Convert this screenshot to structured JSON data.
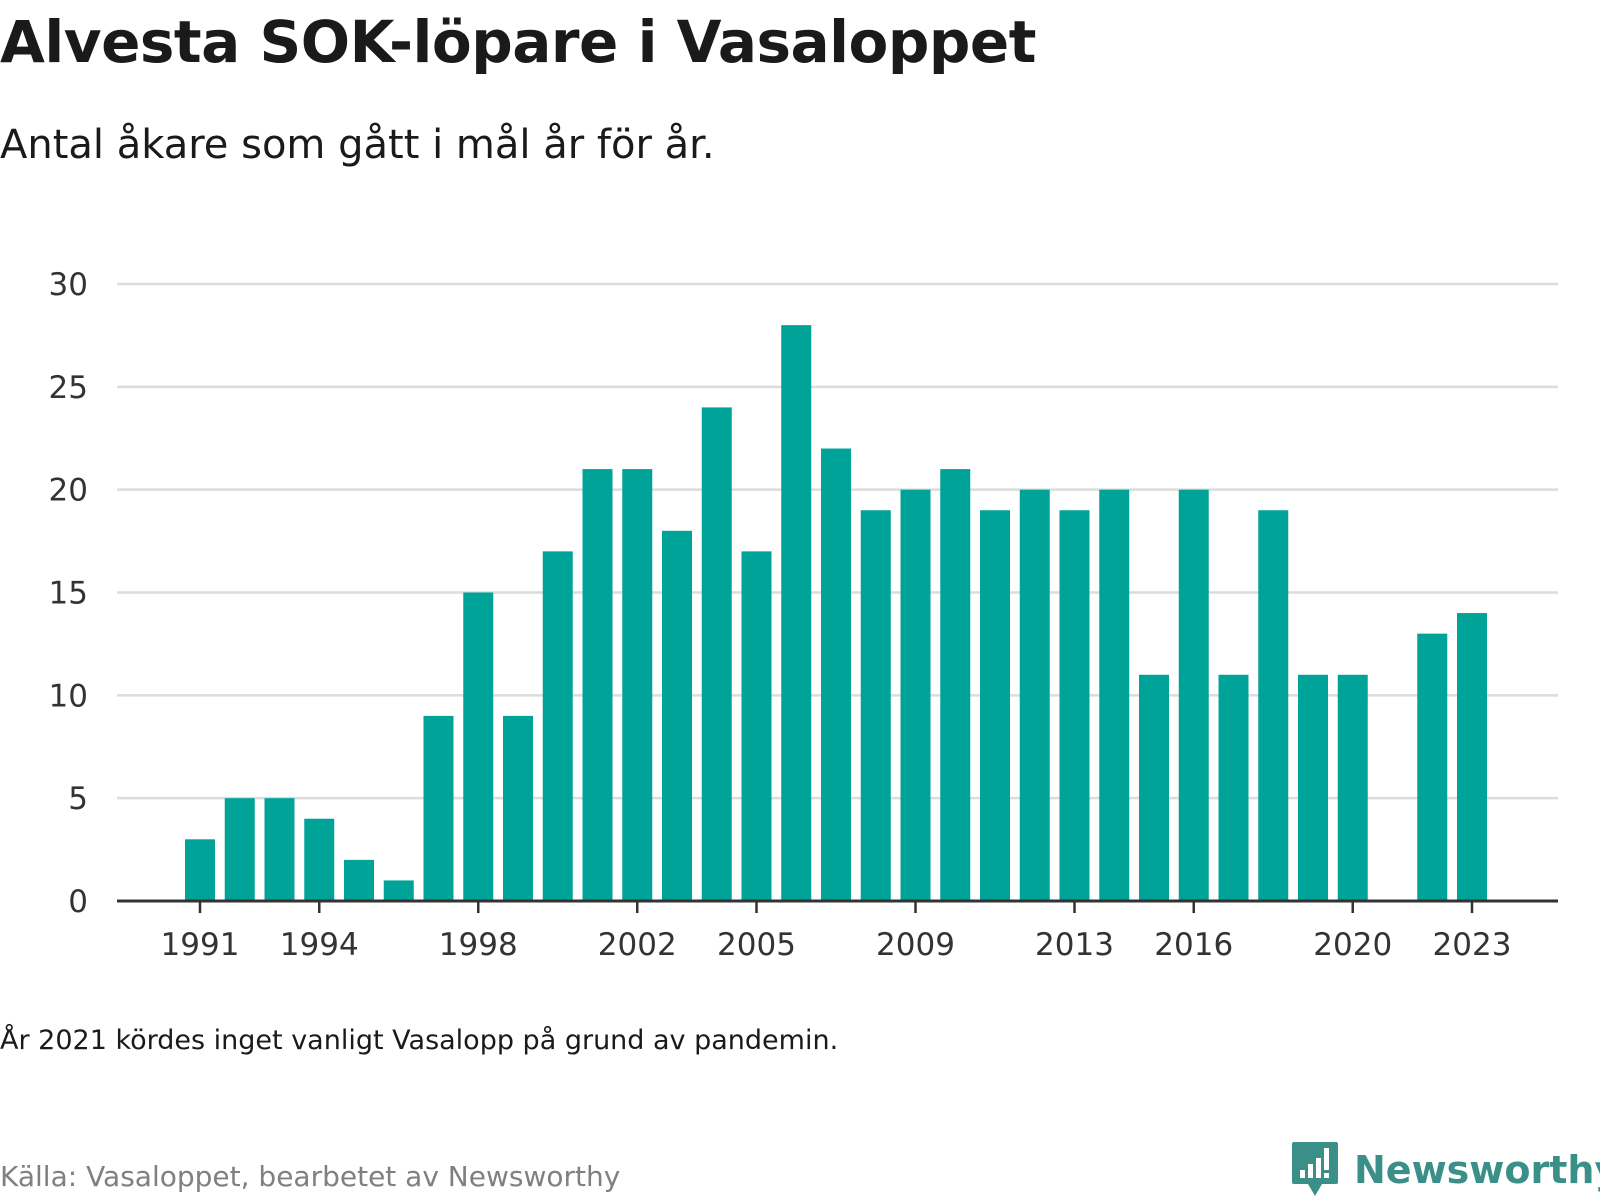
{
  "title": "Alvesta SOK-löpare i Vasaloppet",
  "subtitle": "Antal åkare som gått i mål år för år.",
  "note": "År 2021 kördes inget vanligt Vasalopp på grund av pandemin.",
  "source": "Källa: Vasaloppet, bearbetet av Newsworthy",
  "brand": {
    "name": "Newsworthy",
    "color": "#3a8f88",
    "icon": "newsworthy-logo-icon"
  },
  "chart_data": {
    "type": "bar",
    "title": "Alvesta SOK-löpare i Vasaloppet",
    "subtitle": "Antal åkare som gått i mål år för år.",
    "xlabel": "",
    "ylabel": "",
    "ylim": [
      0,
      30
    ],
    "yticks": [
      0,
      5,
      10,
      15,
      20,
      25,
      30
    ],
    "xticks": [
      1991,
      1994,
      1998,
      2002,
      2005,
      2009,
      2013,
      2016,
      2020,
      2023
    ],
    "grid": true,
    "bar_color": "#00a398",
    "categories": [
      1991,
      1992,
      1993,
      1994,
      1995,
      1996,
      1997,
      1998,
      1999,
      2000,
      2001,
      2002,
      2003,
      2004,
      2005,
      2006,
      2007,
      2008,
      2009,
      2010,
      2011,
      2012,
      2013,
      2014,
      2015,
      2016,
      2017,
      2018,
      2019,
      2020,
      2021,
      2022,
      2023
    ],
    "values": [
      3,
      5,
      5,
      4,
      2,
      1,
      9,
      15,
      9,
      17,
      21,
      21,
      18,
      24,
      17,
      28,
      22,
      19,
      20,
      21,
      19,
      20,
      19,
      20,
      11,
      20,
      11,
      19,
      11,
      11,
      null,
      13,
      14
    ]
  }
}
